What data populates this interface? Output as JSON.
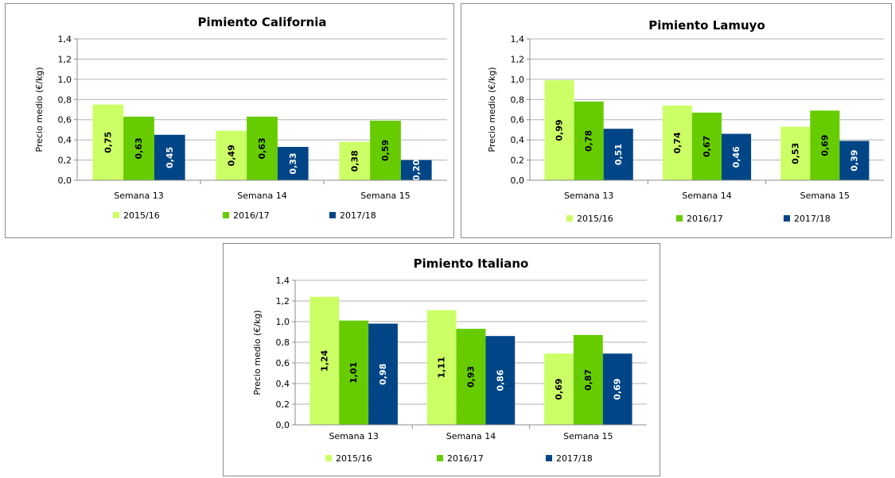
{
  "colors": {
    "2015/16": "#ccff66",
    "2016/17": "#66cc00",
    "2017/18": "#004586",
    "label_dark": "#000000",
    "label_light": "#ffffff",
    "grid": "#b3b3b3"
  },
  "chart_data": [
    {
      "type": "bar",
      "title": "Pimiento California",
      "ylabel": "Precio medio (€/kg)",
      "xlabel": "",
      "categories": [
        "Semana 13",
        "Semana 14",
        "Semana 15"
      ],
      "ylim": [
        0,
        1.4
      ],
      "yticks": [
        "0,0",
        "0,2",
        "0,4",
        "0,6",
        "0,8",
        "1,0",
        "1,2",
        "1,4"
      ],
      "grid": true,
      "legend": "bottom",
      "series": [
        {
          "name": "2015/16",
          "values": [
            0.75,
            0.49,
            0.38
          ],
          "labels": [
            "0,75",
            "0,49",
            "0,38"
          ]
        },
        {
          "name": "2016/17",
          "values": [
            0.63,
            0.63,
            0.59
          ],
          "labels": [
            "0,63",
            "0,63",
            "0,59"
          ]
        },
        {
          "name": "2017/18",
          "values": [
            0.45,
            0.33,
            0.2
          ],
          "labels": [
            "0,45",
            "0,33",
            "0,20"
          ]
        }
      ]
    },
    {
      "type": "bar",
      "title": "Pimiento Lamuyo",
      "ylabel": "Precio medio (€/kg)",
      "xlabel": "",
      "categories": [
        "Semana 13",
        "Semana 14",
        "Semana 15"
      ],
      "ylim": [
        0,
        1.4
      ],
      "yticks": [
        "0,0",
        "0,2",
        "0,4",
        "0,6",
        "0,8",
        "1,0",
        "1,2",
        "1,4"
      ],
      "grid": true,
      "legend": "bottom",
      "series": [
        {
          "name": "2015/16",
          "values": [
            0.99,
            0.74,
            0.53
          ],
          "labels": [
            "0,99",
            "0,74",
            "0,53"
          ]
        },
        {
          "name": "2016/17",
          "values": [
            0.78,
            0.67,
            0.69
          ],
          "labels": [
            "0,78",
            "0,67",
            "0,69"
          ]
        },
        {
          "name": "2017/18",
          "values": [
            0.51,
            0.46,
            0.39
          ],
          "labels": [
            "0,51",
            "0,46",
            "0,39"
          ]
        }
      ]
    },
    {
      "type": "bar",
      "title": "Pimiento Italiano",
      "ylabel": "Precio medio (€/kg)",
      "xlabel": "",
      "categories": [
        "Semana 13",
        "Semana 14",
        "Semana 15"
      ],
      "ylim": [
        0,
        1.4
      ],
      "yticks": [
        "0,0",
        "0,2",
        "0,4",
        "0,6",
        "0,8",
        "1,0",
        "1,2",
        "1,4"
      ],
      "grid": true,
      "legend": "bottom",
      "series": [
        {
          "name": "2015/16",
          "values": [
            1.24,
            1.11,
            0.69
          ],
          "labels": [
            "1,24",
            "1,11",
            "0,69"
          ]
        },
        {
          "name": "2016/17",
          "values": [
            1.01,
            0.93,
            0.87
          ],
          "labels": [
            "1,01",
            "0,93",
            "0,87"
          ]
        },
        {
          "name": "2017/18",
          "values": [
            0.98,
            0.86,
            0.69
          ],
          "labels": [
            "0,98",
            "0,86",
            "0,69"
          ]
        }
      ]
    }
  ]
}
